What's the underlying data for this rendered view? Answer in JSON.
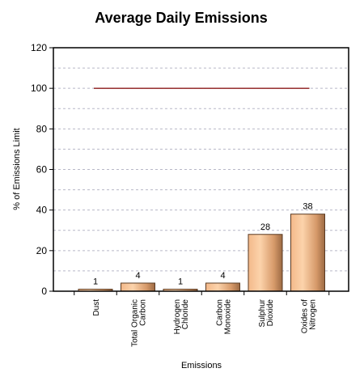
{
  "chart_data": {
    "type": "bar",
    "title": "Average Daily Emissions",
    "xlabel": "Emissions",
    "ylabel": "% of Emissions Limit",
    "ylim": [
      0,
      120
    ],
    "yticks": [
      0,
      20,
      40,
      60,
      80,
      100,
      120
    ],
    "categories": [
      [
        "Dust"
      ],
      [
        "Total Organic",
        "Carbon"
      ],
      [
        "Hydrogen",
        "Chloride"
      ],
      [
        "Carbon",
        "Monoxide"
      ],
      [
        "Sulphur",
        "Dioxide"
      ],
      [
        "Oxides of",
        "Nitrogen"
      ]
    ],
    "values": [
      1,
      4,
      1,
      4,
      28,
      38
    ],
    "data_labels": [
      "1",
      "4",
      "1",
      "4",
      "28",
      "38"
    ],
    "limit_line": {
      "value": 100,
      "color": "#8b1a1a"
    },
    "grid": true,
    "legend": "none",
    "colors": {
      "bar_light": "#fcd2a8",
      "bar_dark": "#b57a4a",
      "bar_edge": "#5a3a22",
      "grid": "#b8b8c8"
    }
  }
}
